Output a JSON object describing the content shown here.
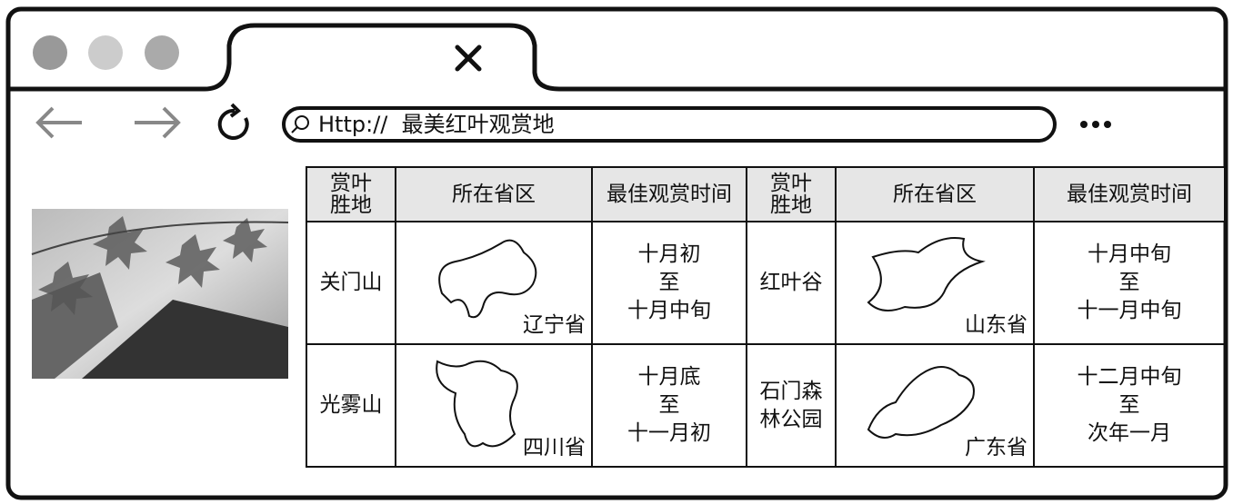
{
  "browser": {
    "address": "Http://  最美红叶观赏地"
  },
  "table": {
    "header": [
      [
        "赏叶",
        "胜地"
      ],
      [
        "所在省区"
      ],
      [
        "最佳观赏时间"
      ],
      [
        "赏叶",
        "胜地"
      ],
      [
        "所在省区"
      ],
      [
        "最佳观赏时间"
      ]
    ],
    "rows": [
      [
        [
          "关门山"
        ],
        [
          "辽宁省"
        ],
        [
          "十月初",
          "至",
          "十月中旬"
        ],
        [
          "红叶谷"
        ],
        [
          "山东省"
        ],
        [
          "十月中旬",
          "至",
          "十一月中旬"
        ]
      ],
      [
        [
          "光雾山"
        ],
        [
          "四川省"
        ],
        [
          "十月底",
          "至",
          "十一月初"
        ],
        [
          "石门森",
          "林公园"
        ],
        [
          "广东省"
        ],
        [
          "十二月中旬",
          "至",
          "次年一月"
        ]
      ]
    ]
  }
}
